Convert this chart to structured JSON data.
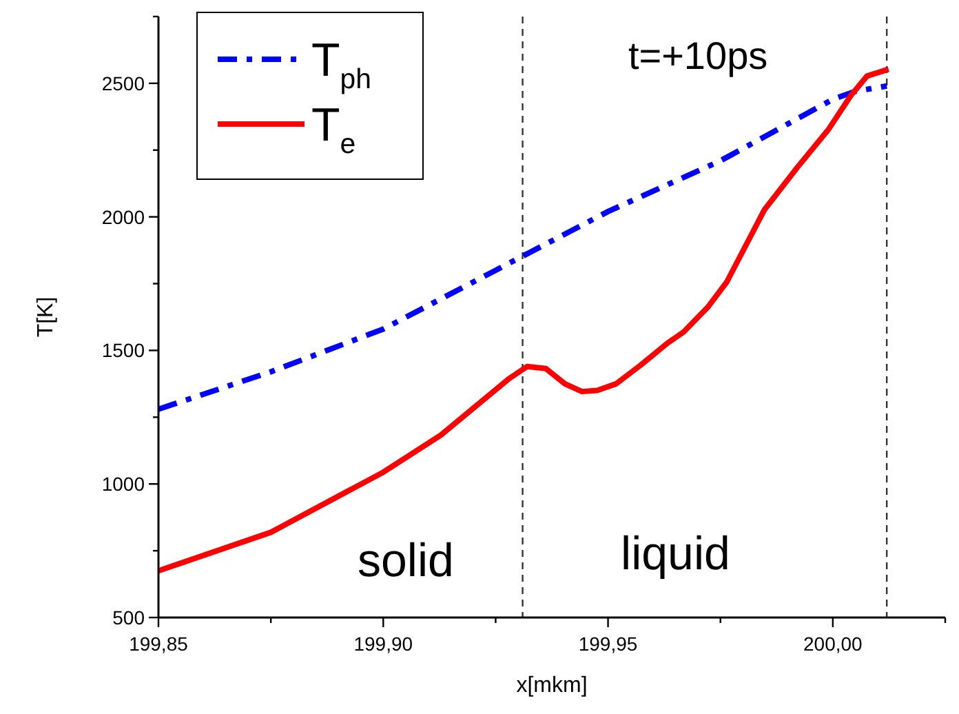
{
  "chart_data": {
    "type": "line",
    "xlabel": "x[mkm]",
    "ylabel": "T[K]",
    "xlim": [
      199.85,
      200.025
    ],
    "ylim": [
      500,
      2750
    ],
    "xticks": [
      {
        "value": 199.85,
        "label": "199,85"
      },
      {
        "value": 199.875,
        "label": null
      },
      {
        "value": 199.9,
        "label": "199,90"
      },
      {
        "value": 199.925,
        "label": null
      },
      {
        "value": 199.95,
        "label": "199,95"
      },
      {
        "value": 199.975,
        "label": null
      },
      {
        "value": 200,
        "label": "200,00"
      },
      {
        "value": 200.025,
        "label": null
      }
    ],
    "yticks": [
      500,
      {
        "value": 750,
        "label": null
      },
      1000,
      {
        "value": 1250,
        "label": null
      },
      1500,
      {
        "value": 1750,
        "label": null
      },
      2000,
      {
        "value": 2250,
        "label": null
      },
      2500,
      {
        "value": 2750,
        "label": null
      }
    ],
    "grid": false,
    "legend": "top left",
    "marker": "none",
    "series": [
      {
        "name": "T$_{ph}$",
        "color": "#0000ff",
        "line_style": "dashed",
        "x": [
          199.85,
          199.875,
          199.9,
          199.925,
          199.95,
          199.975,
          200,
          200.005,
          200.012
        ],
        "values": [
          1280,
          1420,
          1580,
          1800,
          2020,
          2210,
          2440,
          2470,
          2490
        ]
      },
      {
        "name": "T$_{e}$",
        "color": "#ff0000",
        "line_style": "solid",
        "x": [
          199.85,
          199.875,
          199.9,
          199.9128,
          199.9278,
          199.932,
          199.9362,
          199.9404,
          199.9442,
          199.9476,
          199.9518,
          199.9572,
          199.9632,
          199.9668,
          199.9722,
          199.9764,
          199.9848,
          199.992,
          199.9991,
          200.004,
          200.0076,
          200.0124
        ],
        "values": [
          675,
          819,
          1044,
          1183,
          1392,
          1440,
          1432,
          1375,
          1346,
          1350,
          1375,
          1444,
          1527,
          1569,
          1662,
          1756,
          2027,
          2183,
          2329,
          2454,
          2527,
          2553
        ]
      }
    ],
    "ref_lines": [
      {
        "axis": "x",
        "value": 199.931,
        "line_style": "dashed",
        "color": "#333333"
      },
      {
        "axis": "x",
        "value": 200.012,
        "line_style": "dashed",
        "color": "#333333"
      }
    ],
    "annotations": [
      "t=+10ps",
      "solid",
      "liquid"
    ]
  }
}
